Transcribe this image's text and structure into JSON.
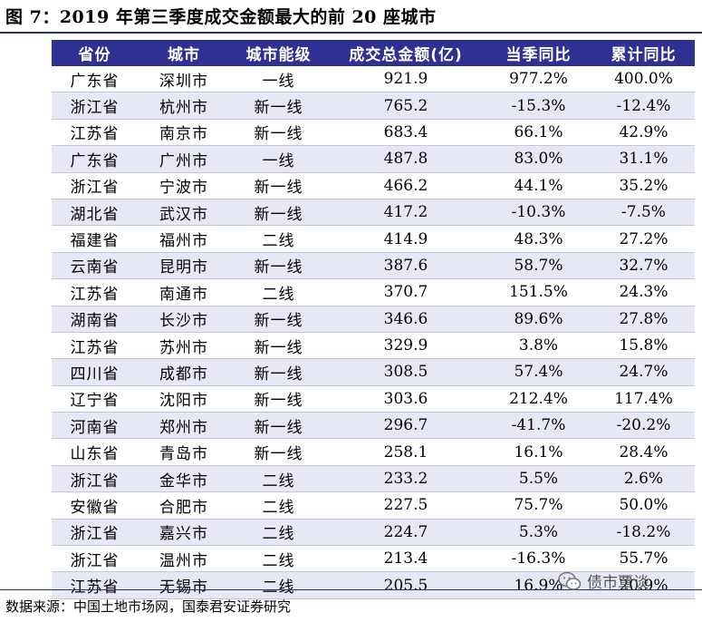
{
  "title": "图 7：2019 年第三季度成交金额最大的前 20 座城市",
  "table": {
    "headers": [
      "省份",
      "城市",
      "城市能级",
      "成交总金额(亿)",
      "当季同比",
      "累计同比"
    ],
    "rows": [
      [
        "广东省",
        "深圳市",
        "一线",
        "921.9",
        "977.2%",
        "400.0%"
      ],
      [
        "浙江省",
        "杭州市",
        "新一线",
        "765.2",
        "-15.3%",
        "-12.4%"
      ],
      [
        "江苏省",
        "南京市",
        "新一线",
        "683.4",
        "66.1%",
        "42.9%"
      ],
      [
        "广东省",
        "广州市",
        "一线",
        "487.8",
        "83.0%",
        "31.1%"
      ],
      [
        "浙江省",
        "宁波市",
        "新一线",
        "466.2",
        "44.1%",
        "35.2%"
      ],
      [
        "湖北省",
        "武汉市",
        "新一线",
        "417.2",
        "-10.3%",
        "-7.5%"
      ],
      [
        "福建省",
        "福州市",
        "二线",
        "414.9",
        "48.3%",
        "27.2%"
      ],
      [
        "云南省",
        "昆明市",
        "新一线",
        "387.6",
        "58.7%",
        "32.7%"
      ],
      [
        "江苏省",
        "南通市",
        "二线",
        "370.7",
        "151.5%",
        "24.3%"
      ],
      [
        "湖南省",
        "长沙市",
        "新一线",
        "346.6",
        "89.6%",
        "27.8%"
      ],
      [
        "江苏省",
        "苏州市",
        "新一线",
        "329.9",
        "3.8%",
        "15.8%"
      ],
      [
        "四川省",
        "成都市",
        "新一线",
        "308.5",
        "57.4%",
        "24.7%"
      ],
      [
        "辽宁省",
        "沈阳市",
        "新一线",
        "303.6",
        "212.4%",
        "117.4%"
      ],
      [
        "河南省",
        "郑州市",
        "新一线",
        "296.7",
        "-41.7%",
        "-20.2%"
      ],
      [
        "山东省",
        "青岛市",
        "新一线",
        "258.1",
        "16.1%",
        "28.4%"
      ],
      [
        "浙江省",
        "金华市",
        "二线",
        "233.2",
        "5.5%",
        "2.6%"
      ],
      [
        "安徽省",
        "合肥市",
        "二线",
        "227.5",
        "75.7%",
        "50.0%"
      ],
      [
        "浙江省",
        "嘉兴市",
        "二线",
        "224.7",
        "5.3%",
        "-18.2%"
      ],
      [
        "浙江省",
        "温州市",
        "二线",
        "213.4",
        "-16.3%",
        "55.7%"
      ],
      [
        "江苏省",
        "无锡市",
        "二线",
        "205.5",
        "16.9%",
        "20.9%"
      ]
    ]
  },
  "source": "数据来源：中国土地市场网，国泰君安证券研究",
  "watermark": {
    "text": "债市覃谈",
    "icon": "wechat-icon"
  },
  "colors": {
    "header_bg": "#2e3192",
    "stripe": "#e6e8f3",
    "rule": "#2b2f7a"
  }
}
